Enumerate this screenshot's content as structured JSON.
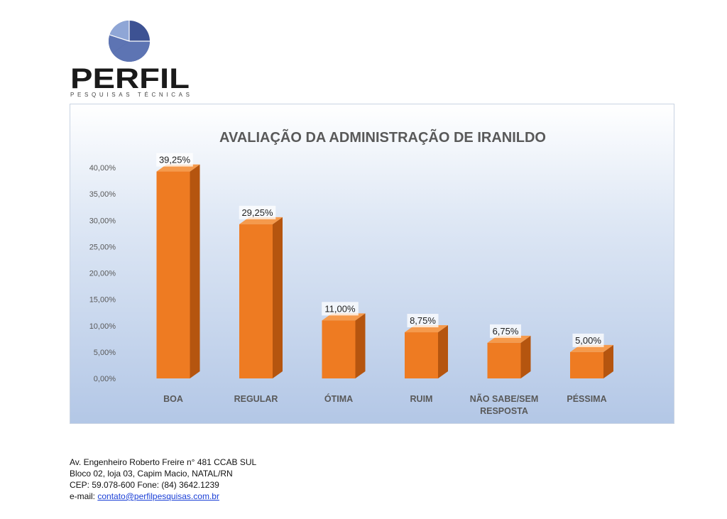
{
  "logo": {
    "name": "PERFIL",
    "tagline": "PESQUISAS TÉCNICAS",
    "colors": {
      "dark": "#3d5293",
      "mid": "#5d74b3",
      "light": "#8fa6d6",
      "text": "#1a1a1a"
    }
  },
  "chart_data": {
    "type": "bar",
    "title": "AVALIAÇÃO DA ADMINISTRAÇÃO DE IRANILDO",
    "categories": [
      "BOA",
      "REGULAR",
      "ÓTIMA",
      "RUIM",
      "NÃO SABE/SEM RESPOSTA",
      "PÉSSIMA"
    ],
    "category_lines": [
      [
        "BOA"
      ],
      [
        "REGULAR"
      ],
      [
        "ÓTIMA"
      ],
      [
        "RUIM"
      ],
      [
        "NÃO SABE/SEM",
        "RESPOSTA"
      ],
      [
        "PÉSSIMA"
      ]
    ],
    "values": [
      39.25,
      29.25,
      11.0,
      8.75,
      6.75,
      5.0
    ],
    "data_labels": [
      "39,25%",
      "29,25%",
      "11,00%",
      "8,75%",
      "6,75%",
      "5,00%"
    ],
    "yticks": [
      "0,00%",
      "5,00%",
      "10,00%",
      "15,00%",
      "20,00%",
      "25,00%",
      "30,00%",
      "35,00%",
      "40,00%"
    ],
    "ylim": [
      0,
      40
    ],
    "xlabel": "",
    "ylabel": "",
    "grid": false,
    "legend": "none",
    "colors": {
      "bar_front": "#ee7b22",
      "bar_side": "#b5550f",
      "bar_top": "#f59a4c"
    }
  },
  "footer": {
    "address_line1": "Av. Engenheiro Roberto Freire n° 481 CCAB SUL",
    "address_line2": "Bloco 02, loja 03, Capim Macio, NATAL/RN",
    "address_line3": "CEP: 59.078-600 Fone: (84) 3642.1239",
    "email_label": "e-mail: ",
    "email": "contato@perfilpesquisas.com.br"
  }
}
